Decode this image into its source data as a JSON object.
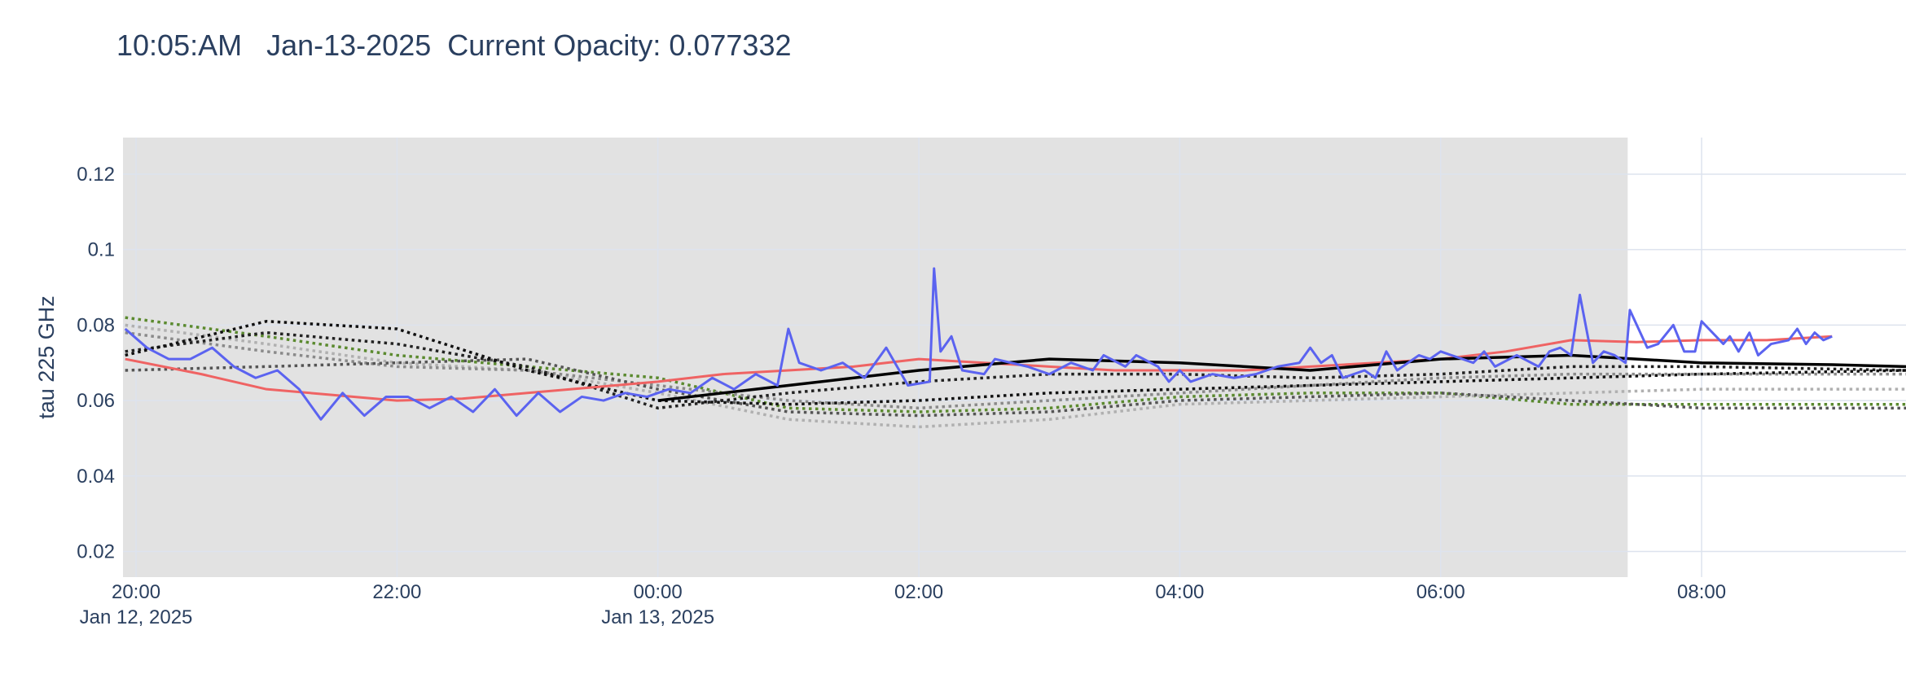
{
  "chart_data": {
    "type": "line",
    "title": "10:05:AM   Jan-13-2025  Current Opacity: 0.077332",
    "ylabel": "tau 225 GHz",
    "xlim": [
      "2025-01-12 19:54",
      "2025-01-13 09:34"
    ],
    "ylim": [
      0.0132,
      0.1297
    ],
    "yticks": [
      0.02,
      0.04,
      0.06,
      0.08,
      0.1,
      0.12
    ],
    "xticks": [
      {
        "value": "2025-01-12 20:00",
        "label": "20:00",
        "date": "Jan 12, 2025"
      },
      {
        "value": "2025-01-12 22:00",
        "label": "22:00"
      },
      {
        "value": "2025-01-13 00:00",
        "label": "00:00",
        "date": "Jan 13, 2025"
      },
      {
        "value": "2025-01-13 02:00",
        "label": "02:00"
      },
      {
        "value": "2025-01-13 04:00",
        "label": "04:00"
      },
      {
        "value": "2025-01-13 06:00",
        "label": "06:00"
      },
      {
        "value": "2025-01-13 08:00",
        "label": "08:00"
      }
    ],
    "grid": true,
    "shade": {
      "x": [
        "2025-01-12 19:54",
        "2025-01-13 07:26"
      ],
      "color": "#e2e2e2"
    },
    "series": [
      {
        "color": "#5b8a2f",
        "dash": "dot",
        "width": 3.5,
        "x": [
          "2025-01-12 19:55",
          "2025-01-12 21:00",
          "2025-01-12 22:00",
          "2025-01-12 23:00",
          "2025-01-13 00:00",
          "2025-01-13 01:00",
          "2025-01-13 02:00",
          "2025-01-13 03:00",
          "2025-01-13 04:00",
          "2025-01-13 05:00",
          "2025-01-13 06:00",
          "2025-01-13 07:00",
          "2025-01-13 08:00",
          "2025-01-13 09:34"
        ],
        "values": [
          0.082,
          0.077,
          0.072,
          0.069,
          0.066,
          0.058,
          0.057,
          0.058,
          0.061,
          0.062,
          0.062,
          0.059,
          0.059,
          0.059
        ]
      },
      {
        "color": "#b0b0b0",
        "dash": "dot",
        "width": 3.5,
        "x": [
          "2025-01-12 19:55",
          "2025-01-12 21:00",
          "2025-01-12 22:00",
          "2025-01-12 23:00",
          "2025-01-13 00:00",
          "2025-01-13 01:00",
          "2025-01-13 02:00",
          "2025-01-13 03:00",
          "2025-01-13 04:00",
          "2025-01-13 05:00",
          "2025-01-13 06:00",
          "2025-01-13 07:00",
          "2025-01-13 08:00",
          "2025-01-13 09:34"
        ],
        "values": [
          0.08,
          0.075,
          0.07,
          0.068,
          0.062,
          0.055,
          0.053,
          0.055,
          0.059,
          0.06,
          0.061,
          0.062,
          0.063,
          0.063
        ]
      },
      {
        "color": "#8a8a8a",
        "dash": "dot",
        "width": 3.5,
        "x": [
          "2025-01-12 19:55",
          "2025-01-12 21:00",
          "2025-01-12 22:00",
          "2025-01-12 23:00",
          "2025-01-13 00:00",
          "2025-01-13 01:00",
          "2025-01-13 02:00",
          "2025-01-13 03:00",
          "2025-01-13 04:00",
          "2025-01-13 05:00",
          "2025-01-13 06:00",
          "2025-01-13 07:00",
          "2025-01-13 08:00",
          "2025-01-13 09:34"
        ],
        "values": [
          0.078,
          0.073,
          0.069,
          0.068,
          0.064,
          0.06,
          0.058,
          0.06,
          0.062,
          0.064,
          0.066,
          0.067,
          0.067,
          0.067
        ]
      },
      {
        "color": "#555555",
        "dash": "dot",
        "width": 3.5,
        "x": [
          "2025-01-12 19:55",
          "2025-01-12 21:00",
          "2025-01-12 22:00",
          "2025-01-12 23:00",
          "2025-01-13 00:00",
          "2025-01-13 01:00",
          "2025-01-13 02:00",
          "2025-01-13 03:00",
          "2025-01-13 04:00",
          "2025-01-13 05:00",
          "2025-01-13 06:00",
          "2025-01-13 07:00",
          "2025-01-13 08:00",
          "2025-01-13 09:34"
        ],
        "values": [
          0.068,
          0.069,
          0.07,
          0.071,
          0.063,
          0.057,
          0.056,
          0.057,
          0.06,
          0.061,
          0.062,
          0.06,
          0.058,
          0.058
        ]
      },
      {
        "color": "#222222",
        "dash": "dot",
        "width": 3.5,
        "x": [
          "2025-01-12 19:55",
          "2025-01-12 21:00",
          "2025-01-12 22:00",
          "2025-01-12 23:00",
          "2025-01-13 00:00",
          "2025-01-13 01:00",
          "2025-01-13 02:00",
          "2025-01-13 03:00",
          "2025-01-13 04:00",
          "2025-01-13 05:00",
          "2025-01-13 06:00",
          "2025-01-13 07:00",
          "2025-01-13 08:00",
          "2025-01-13 09:34"
        ],
        "values": [
          0.073,
          0.078,
          0.075,
          0.069,
          0.058,
          0.062,
          0.065,
          0.067,
          0.067,
          0.066,
          0.067,
          0.069,
          0.069,
          0.068
        ]
      },
      {
        "color": "#111111",
        "dash": "dot",
        "width": 3.5,
        "x": [
          "2025-01-12 19:55",
          "2025-01-12 21:00",
          "2025-01-12 22:00",
          "2025-01-12 23:00",
          "2025-01-13 00:00",
          "2025-01-13 01:00",
          "2025-01-13 02:00",
          "2025-01-13 03:00",
          "2025-01-13 04:00",
          "2025-01-13 05:00",
          "2025-01-13 06:00",
          "2025-01-13 07:00",
          "2025-01-13 08:00",
          "2025-01-13 09:34"
        ],
        "values": [
          0.072,
          0.081,
          0.079,
          0.068,
          0.06,
          0.059,
          0.06,
          0.062,
          0.063,
          0.064,
          0.065,
          0.066,
          0.067,
          0.068
        ]
      },
      {
        "color": "#ef6363",
        "dash": "solid",
        "width": 3,
        "x": [
          "2025-01-12 19:55",
          "2025-01-12 20:30",
          "2025-01-12 21:00",
          "2025-01-12 21:30",
          "2025-01-12 22:00",
          "2025-01-12 22:30",
          "2025-01-12 23:00",
          "2025-01-12 23:30",
          "2025-01-13 00:00",
          "2025-01-13 00:30",
          "2025-01-13 01:00",
          "2025-01-13 01:30",
          "2025-01-13 02:00",
          "2025-01-13 02:30",
          "2025-01-13 03:00",
          "2025-01-13 03:30",
          "2025-01-13 04:00",
          "2025-01-13 04:30",
          "2025-01-13 05:00",
          "2025-01-13 05:30",
          "2025-01-13 06:00",
          "2025-01-13 06:30",
          "2025-01-13 07:00",
          "2025-01-13 07:30",
          "2025-01-13 08:00",
          "2025-01-13 08:30",
          "2025-01-13 09:00"
        ],
        "values": [
          0.071,
          0.067,
          0.063,
          0.0615,
          0.06,
          0.0605,
          0.062,
          0.0635,
          0.065,
          0.067,
          0.068,
          0.069,
          0.071,
          0.07,
          0.069,
          0.068,
          0.068,
          0.068,
          0.069,
          0.07,
          0.071,
          0.073,
          0.076,
          0.0755,
          0.076,
          0.076,
          0.077
        ]
      },
      {
        "color": "#000000",
        "dash": "solid",
        "width": 3.5,
        "x": [
          "2025-01-13 00:00",
          "2025-01-13 01:00",
          "2025-01-13 02:00",
          "2025-01-13 03:00",
          "2025-01-13 04:00",
          "2025-01-13 05:00",
          "2025-01-13 06:00",
          "2025-01-13 07:00",
          "2025-01-13 08:00",
          "2025-01-13 09:00",
          "2025-01-13 09:34"
        ],
        "values": [
          0.06,
          0.064,
          0.068,
          0.071,
          0.07,
          0.068,
          0.071,
          0.072,
          0.07,
          0.0695,
          0.069
        ]
      },
      {
        "color": "#5b63f0",
        "dash": "solid",
        "width": 3,
        "x": [
          "2025-01-12 19:55",
          "2025-01-12 20:05",
          "2025-01-12 20:15",
          "2025-01-12 20:25",
          "2025-01-12 20:35",
          "2025-01-12 20:45",
          "2025-01-12 20:55",
          "2025-01-12 21:05",
          "2025-01-12 21:15",
          "2025-01-12 21:25",
          "2025-01-12 21:35",
          "2025-01-12 21:45",
          "2025-01-12 21:55",
          "2025-01-12 22:05",
          "2025-01-12 22:15",
          "2025-01-12 22:25",
          "2025-01-12 22:35",
          "2025-01-12 22:45",
          "2025-01-12 22:55",
          "2025-01-12 23:05",
          "2025-01-12 23:15",
          "2025-01-12 23:25",
          "2025-01-12 23:35",
          "2025-01-12 23:45",
          "2025-01-12 23:55",
          "2025-01-13 00:05",
          "2025-01-13 00:15",
          "2025-01-13 00:25",
          "2025-01-13 00:35",
          "2025-01-13 00:45",
          "2025-01-13 00:55",
          "2025-01-13 01:00",
          "2025-01-13 01:05",
          "2025-01-13 01:15",
          "2025-01-13 01:25",
          "2025-01-13 01:35",
          "2025-01-13 01:45",
          "2025-01-13 01:55",
          "2025-01-13 02:05",
          "2025-01-13 02:07",
          "2025-01-13 02:10",
          "2025-01-13 02:15",
          "2025-01-13 02:20",
          "2025-01-13 02:30",
          "2025-01-13 02:35",
          "2025-01-13 02:50",
          "2025-01-13 03:00",
          "2025-01-13 03:10",
          "2025-01-13 03:20",
          "2025-01-13 03:25",
          "2025-01-13 03:35",
          "2025-01-13 03:40",
          "2025-01-13 03:50",
          "2025-01-13 03:55",
          "2025-01-13 04:00",
          "2025-01-13 04:05",
          "2025-01-13 04:15",
          "2025-01-13 04:25",
          "2025-01-13 04:35",
          "2025-01-13 04:45",
          "2025-01-13 04:55",
          "2025-01-13 05:00",
          "2025-01-13 05:05",
          "2025-01-13 05:10",
          "2025-01-13 05:15",
          "2025-01-13 05:25",
          "2025-01-13 05:30",
          "2025-01-13 05:35",
          "2025-01-13 05:40",
          "2025-01-13 05:50",
          "2025-01-13 05:55",
          "2025-01-13 06:00",
          "2025-01-13 06:10",
          "2025-01-13 06:15",
          "2025-01-13 06:20",
          "2025-01-13 06:25",
          "2025-01-13 06:35",
          "2025-01-13 06:45",
          "2025-01-13 06:50",
          "2025-01-13 06:55",
          "2025-01-13 07:00",
          "2025-01-13 07:04",
          "2025-01-13 07:10",
          "2025-01-13 07:15",
          "2025-01-13 07:20",
          "2025-01-13 07:25",
          "2025-01-13 07:27",
          "2025-01-13 07:35",
          "2025-01-13 07:40",
          "2025-01-13 07:47",
          "2025-01-13 07:52",
          "2025-01-13 07:57",
          "2025-01-13 08:00",
          "2025-01-13 08:10",
          "2025-01-13 08:13",
          "2025-01-13 08:17",
          "2025-01-13 08:22",
          "2025-01-13 08:26",
          "2025-01-13 08:32",
          "2025-01-13 08:40",
          "2025-01-13 08:44",
          "2025-01-13 08:48",
          "2025-01-13 08:52",
          "2025-01-13 08:56",
          "2025-01-13 09:00"
        ],
        "values": [
          0.079,
          0.074,
          0.071,
          0.071,
          0.074,
          0.069,
          0.066,
          0.068,
          0.063,
          0.055,
          0.062,
          0.056,
          0.061,
          0.061,
          0.058,
          0.061,
          0.057,
          0.063,
          0.056,
          0.062,
          0.057,
          0.061,
          0.06,
          0.062,
          0.061,
          0.063,
          0.062,
          0.066,
          0.063,
          0.067,
          0.064,
          0.079,
          0.07,
          0.068,
          0.07,
          0.066,
          0.074,
          0.064,
          0.065,
          0.095,
          0.073,
          0.077,
          0.068,
          0.067,
          0.071,
          0.069,
          0.067,
          0.07,
          0.068,
          0.072,
          0.069,
          0.072,
          0.069,
          0.065,
          0.068,
          0.065,
          0.067,
          0.066,
          0.067,
          0.069,
          0.07,
          0.074,
          0.07,
          0.072,
          0.066,
          0.068,
          0.066,
          0.073,
          0.068,
          0.072,
          0.071,
          0.073,
          0.071,
          0.07,
          0.073,
          0.069,
          0.072,
          0.069,
          0.073,
          0.074,
          0.072,
          0.088,
          0.07,
          0.073,
          0.072,
          0.07,
          0.084,
          0.074,
          0.075,
          0.08,
          0.073,
          0.073,
          0.081,
          0.075,
          0.077,
          0.073,
          0.078,
          0.072,
          0.075,
          0.076,
          0.079,
          0.075,
          0.078,
          0.076,
          0.077
        ]
      }
    ]
  }
}
